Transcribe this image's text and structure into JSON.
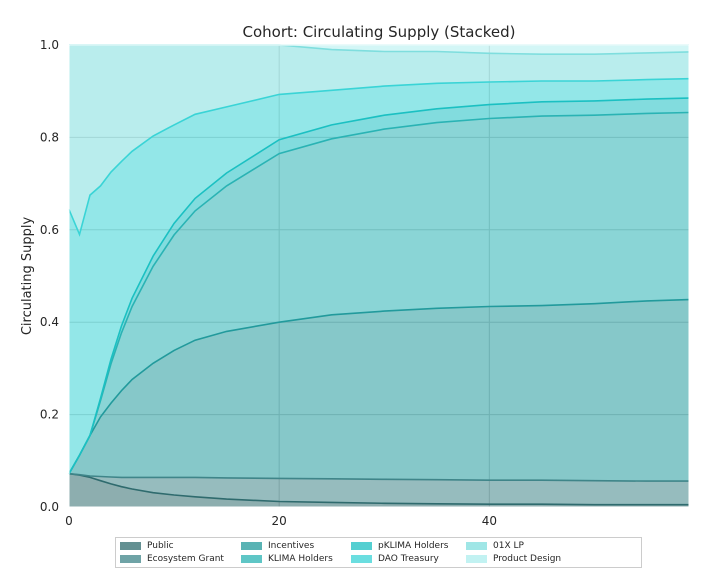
{
  "chart_data": {
    "type": "area",
    "stacked": true,
    "title": "Cohort: Circulating Supply (Stacked)",
    "xlabel": "",
    "ylabel": "Circulating Supply",
    "xlim": [
      0,
      59
    ],
    "ylim": [
      0,
      1.0
    ],
    "xticks": [
      "0",
      "20",
      "40"
    ],
    "yticks": [
      "0.0",
      "0.2",
      "0.4",
      "0.6",
      "0.8",
      "1.0"
    ],
    "grid": true,
    "legend_position": "bottom",
    "x": [
      0,
      1,
      2,
      3,
      4,
      5,
      6,
      8,
      10,
      12,
      15,
      20,
      25,
      30,
      35,
      40,
      45,
      50,
      55,
      59
    ],
    "series": [
      {
        "name": "Public",
        "color": "#2f6b6e",
        "values": [
          0.072,
          0.069,
          0.064,
          0.057,
          0.05,
          0.044,
          0.039,
          0.031,
          0.026,
          0.022,
          0.017,
          0.012,
          0.01,
          0.008,
          0.007,
          0.006,
          0.006,
          0.005,
          0.005,
          0.005
        ]
      },
      {
        "name": "Ecosystem Grant",
        "color": "#3f8589",
        "values": [
          0.0,
          0.001,
          0.003,
          0.009,
          0.015,
          0.02,
          0.025,
          0.033,
          0.038,
          0.042,
          0.046,
          0.05,
          0.051,
          0.052,
          0.052,
          0.052,
          0.052,
          0.052,
          0.051,
          0.051
        ]
      },
      {
        "name": "Incentives",
        "color": "#229a9c",
        "values": [
          0.0,
          0.042,
          0.088,
          0.129,
          0.16,
          0.188,
          0.212,
          0.247,
          0.275,
          0.297,
          0.317,
          0.338,
          0.355,
          0.364,
          0.371,
          0.376,
          0.378,
          0.383,
          0.39,
          0.393
        ]
      },
      {
        "name": "KLIMA Holders",
        "color": "#2ab3b4",
        "values": [
          0.0,
          0.0,
          0.0,
          0.035,
          0.085,
          0.125,
          0.158,
          0.21,
          0.25,
          0.28,
          0.315,
          0.365,
          0.381,
          0.394,
          0.402,
          0.407,
          0.41,
          0.408,
          0.406,
          0.405
        ]
      },
      {
        "name": "pKLIMA Holders",
        "color": "#1bc0c2",
        "values": [
          0.0,
          0.0,
          0.0,
          0.005,
          0.01,
          0.015,
          0.018,
          0.022,
          0.025,
          0.027,
          0.028,
          0.03,
          0.03,
          0.03,
          0.03,
          0.03,
          0.031,
          0.031,
          0.031,
          0.031
        ]
      },
      {
        "name": "DAO Treasury",
        "color": "#3ad4d6",
        "values": [
          0.572,
          0.478,
          0.52,
          0.46,
          0.405,
          0.356,
          0.318,
          0.26,
          0.213,
          0.182,
          0.143,
          0.098,
          0.075,
          0.063,
          0.055,
          0.049,
          0.045,
          0.043,
          0.042,
          0.042
        ]
      },
      {
        "name": "01X  LP",
        "color": "#7fdede",
        "values": [
          0.356,
          0.41,
          0.325,
          0.305,
          0.275,
          0.252,
          0.23,
          0.197,
          0.173,
          0.15,
          0.134,
          0.107,
          0.088,
          0.075,
          0.069,
          0.062,
          0.058,
          0.058,
          0.058,
          0.058
        ]
      },
      {
        "name": "Product Design",
        "color": "#aeeeee",
        "values": [
          0.0,
          0.0,
          0.0,
          0.0,
          0.0,
          0.0,
          0.0,
          0.0,
          0.0,
          0.0,
          0.0,
          0.0,
          0.01,
          0.014,
          0.014,
          0.018,
          0.02,
          0.02,
          0.017,
          0.015
        ]
      }
    ]
  }
}
